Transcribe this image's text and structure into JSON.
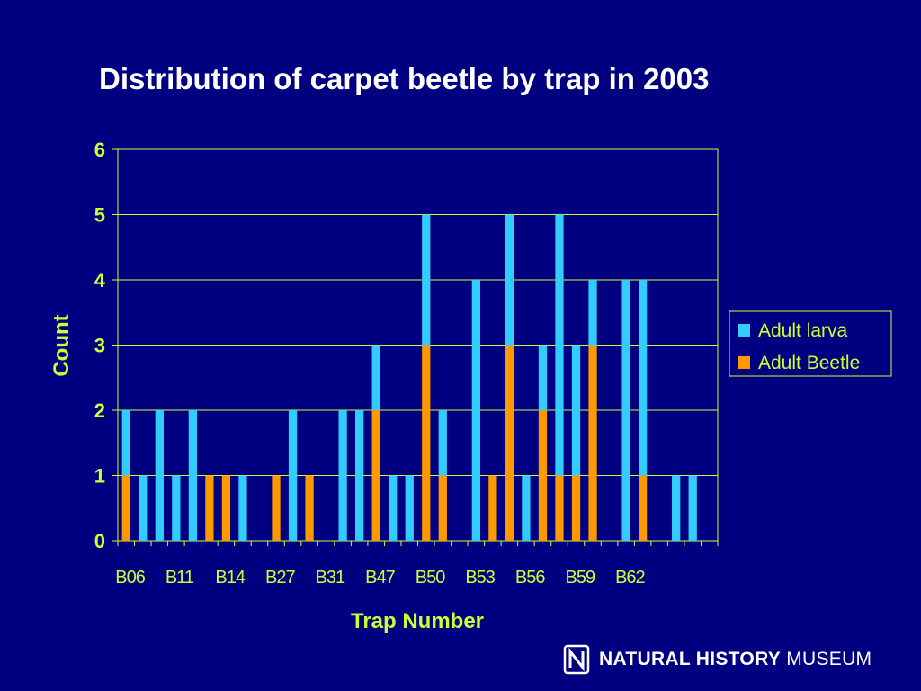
{
  "title": "Distribution of carpet beetle by trap in 2003",
  "logo": {
    "bold": "NATURAL HISTORY",
    "light": "MUSEUM"
  },
  "colors": {
    "background": "#000080",
    "axis_text": "#CCFF33",
    "larva": "#33CCFF",
    "beetle": "#FF9900",
    "grid": "#CCFF33"
  },
  "chart_data": {
    "type": "bar",
    "stacked": true,
    "title": "Distribution of carpet beetle by trap in 2003",
    "xlabel": "Trap Number",
    "ylabel": "Count",
    "ylim": [
      0,
      6
    ],
    "yticks": [
      0,
      1,
      2,
      3,
      4,
      5,
      6
    ],
    "grid": true,
    "legend_position": "right",
    "visible_category_labels": [
      "B06",
      "B11",
      "B14",
      "B27",
      "B31",
      "B47",
      "B50",
      "B53",
      "B56",
      "B59",
      "B62"
    ],
    "series": [
      {
        "name": "Adult larva",
        "color": "#33CCFF",
        "values": [
          1,
          1,
          2,
          1,
          2,
          0,
          0,
          1,
          0,
          0,
          2,
          0,
          0,
          2,
          2,
          1,
          1,
          1,
          2,
          1,
          0,
          4,
          0,
          2,
          1,
          1,
          4,
          2,
          1,
          0,
          4,
          3,
          0,
          1,
          1,
          0
        ]
      },
      {
        "name": "Adult Beetle",
        "color": "#FF9900",
        "values": [
          1,
          0,
          0,
          0,
          0,
          1,
          1,
          0,
          0,
          1,
          0,
          1,
          0,
          0,
          0,
          2,
          0,
          0,
          3,
          1,
          0,
          0,
          1,
          3,
          0,
          2,
          1,
          1,
          3,
          0,
          0,
          1,
          0,
          0,
          0,
          0
        ]
      }
    ]
  }
}
